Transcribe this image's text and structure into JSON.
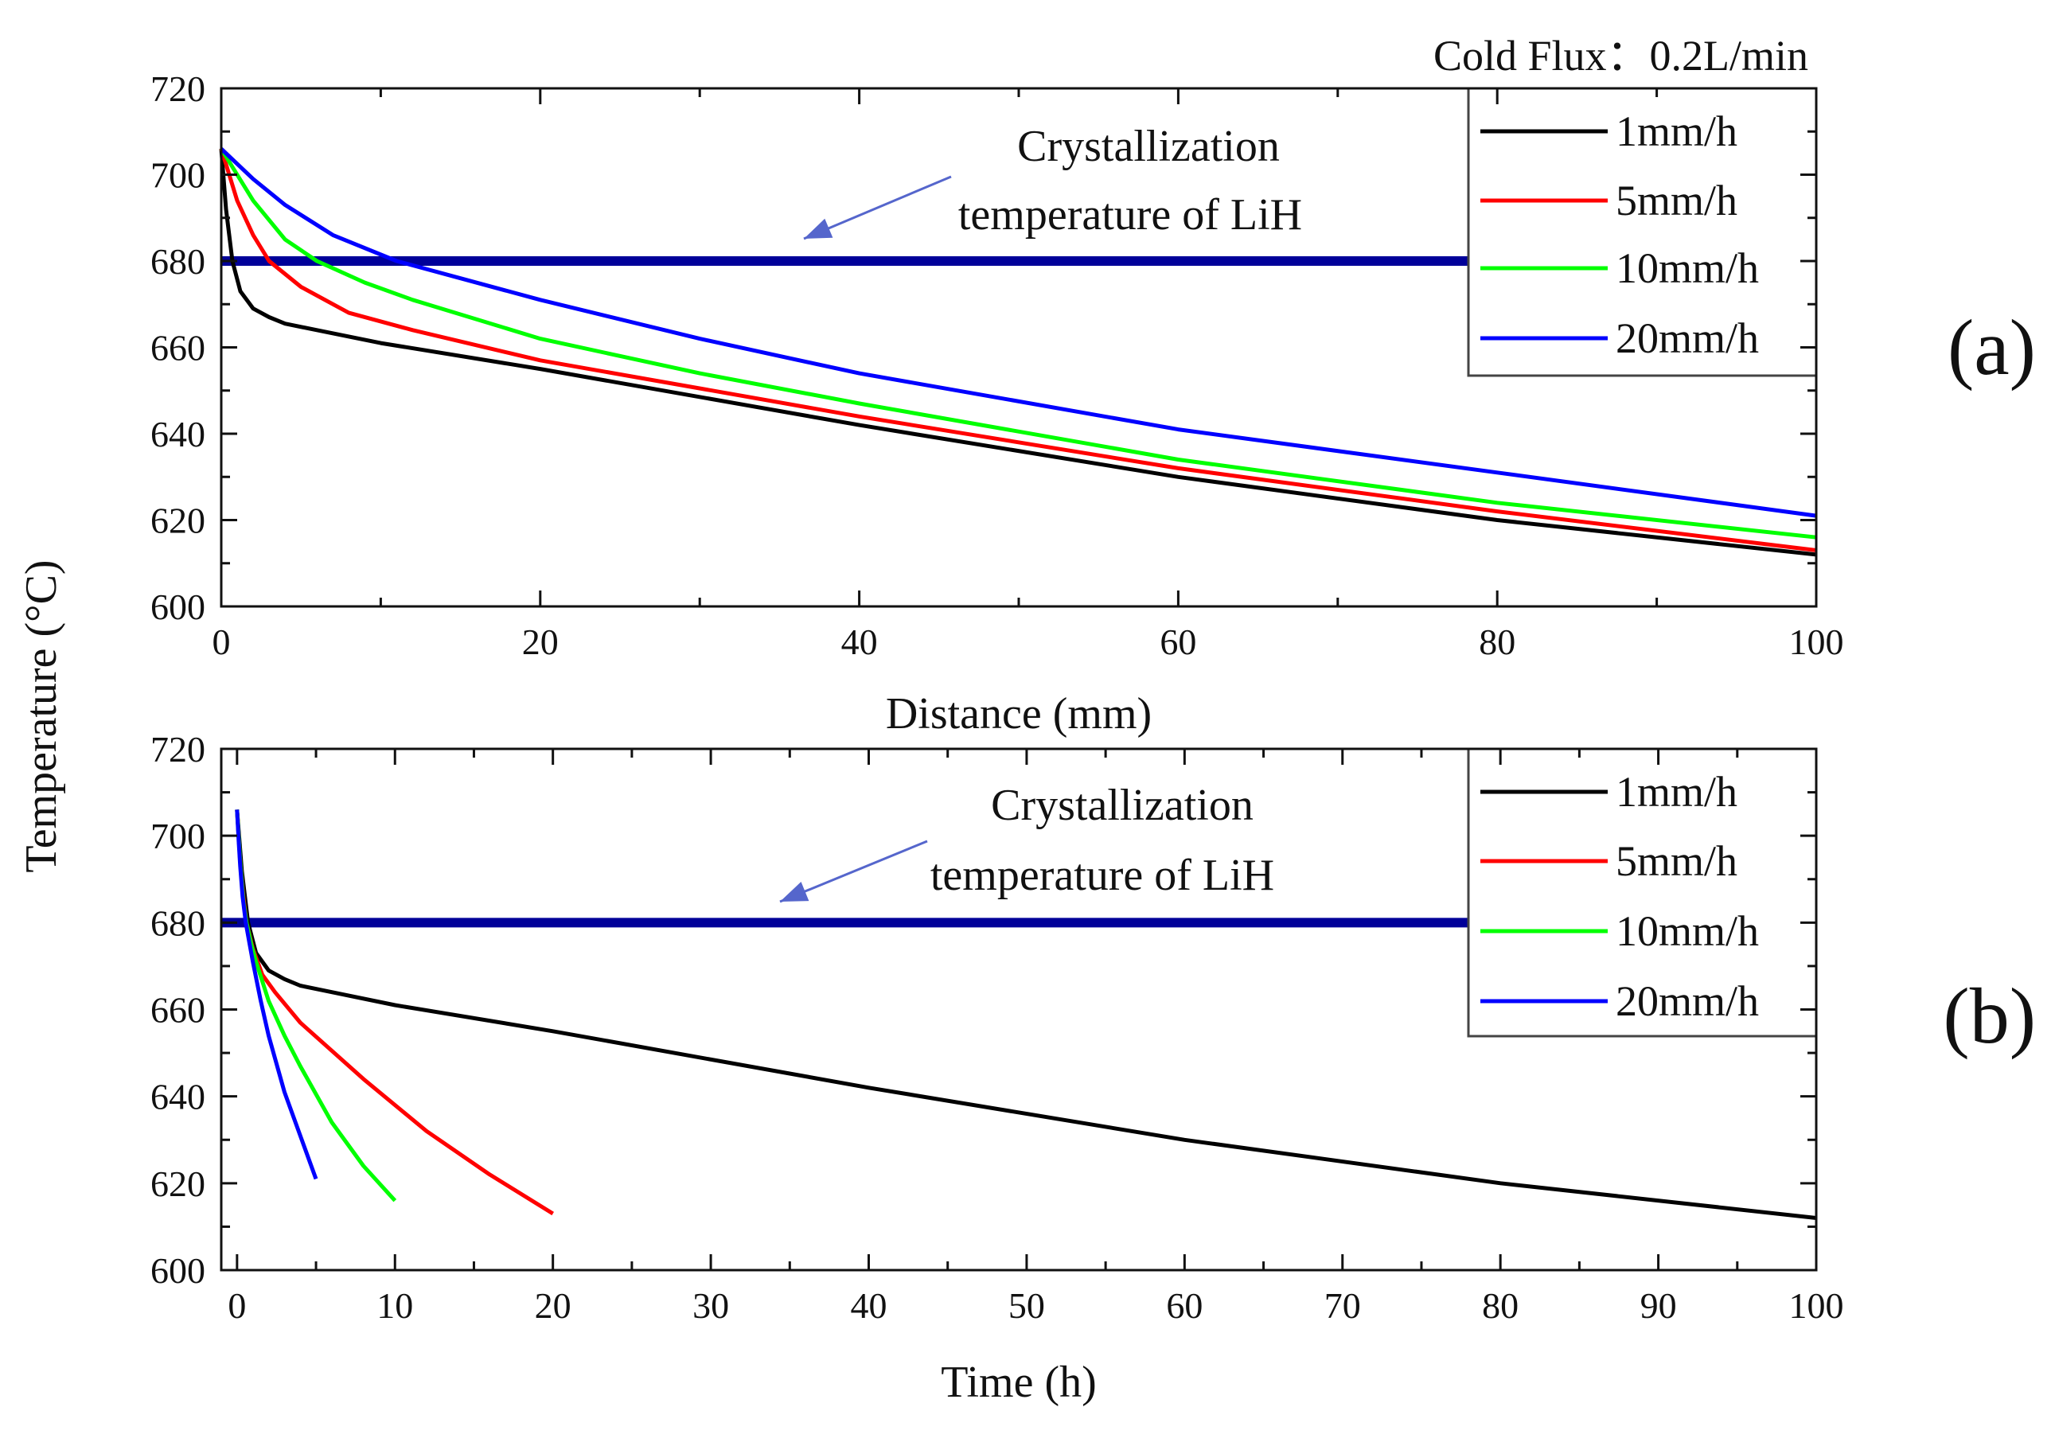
{
  "header": {
    "cold_flux": "Cold Flux：0.2L/min"
  },
  "y_axis_title": "Temperature (°C)",
  "colors": {
    "1mm/h": "#000000",
    "5mm/h": "#ff0000",
    "10mm/h": "#00ff00",
    "20mm/h": "#0000ff",
    "crystallization_line": "#000099",
    "annotation_arrow": "#5566cc"
  },
  "chart_data": [
    {
      "type": "line",
      "panel_label": "(a)",
      "xlabel": "Distance (mm)",
      "ylabel": "Temperature (°C)",
      "xlim": [
        0,
        100
      ],
      "ylim": [
        600,
        720
      ],
      "x_ticks": [
        0,
        20,
        40,
        60,
        80,
        100
      ],
      "y_ticks": [
        600,
        620,
        640,
        660,
        680,
        700,
        720
      ],
      "legend_position": "top-right",
      "annotation": {
        "line1": "Crystallization",
        "line2": "temperature of LiH"
      },
      "hline": {
        "y": 680
      },
      "series": [
        {
          "name": "1mm/h",
          "color": "#000000",
          "x": [
            0,
            0.3,
            0.7,
            1.2,
            2,
            3,
            4,
            6,
            10,
            20,
            40,
            60,
            80,
            100
          ],
          "y": [
            706,
            692,
            680,
            673,
            669,
            667,
            665.5,
            664,
            661,
            655,
            642,
            630,
            620,
            612
          ]
        },
        {
          "name": "5mm/h",
          "color": "#ff0000",
          "x": [
            0,
            0.5,
            1,
            2,
            3,
            5,
            8,
            12,
            20,
            40,
            60,
            80,
            100
          ],
          "y": [
            706,
            700,
            694,
            686,
            680,
            674,
            668,
            664,
            657,
            644,
            632,
            622,
            613
          ]
        },
        {
          "name": "10mm/h",
          "color": "#00ff00",
          "x": [
            0,
            1,
            2,
            4,
            6,
            9,
            12,
            20,
            30,
            40,
            60,
            80,
            100
          ],
          "y": [
            706,
            700,
            694,
            685,
            680,
            675,
            671,
            662,
            654,
            647,
            634,
            624,
            616
          ]
        },
        {
          "name": "20mm/h",
          "color": "#0000ff",
          "x": [
            0,
            2,
            4,
            7,
            11,
            15,
            20,
            30,
            40,
            60,
            80,
            100
          ],
          "y": [
            706,
            699,
            693,
            686,
            680,
            676,
            671,
            662,
            654,
            641,
            631,
            621
          ]
        }
      ]
    },
    {
      "type": "line",
      "panel_label": "(b)",
      "xlabel": "Time (h)",
      "ylabel": "Temperature (°C)",
      "xlim": [
        -1,
        100
      ],
      "ylim": [
        600,
        720
      ],
      "x_ticks": [
        0,
        10,
        20,
        30,
        40,
        50,
        60,
        70,
        80,
        90,
        100
      ],
      "y_ticks": [
        600,
        620,
        640,
        660,
        680,
        700,
        720
      ],
      "legend_position": "top-right",
      "annotation": {
        "line1": "Crystallization",
        "line2": "temperature of LiH"
      },
      "hline": {
        "y": 680
      },
      "series": [
        {
          "name": "1mm/h",
          "color": "#000000",
          "x": [
            0,
            0.3,
            0.7,
            1.2,
            2,
            3,
            4,
            6,
            10,
            20,
            40,
            60,
            80,
            100
          ],
          "y": [
            706,
            692,
            680,
            673,
            669,
            667,
            665.5,
            664,
            661,
            655,
            642,
            630,
            620,
            612
          ]
        },
        {
          "name": "5mm/h",
          "color": "#ff0000",
          "x": [
            0,
            0.1,
            0.2,
            0.4,
            0.6,
            1,
            1.6,
            2.4,
            4,
            8,
            12,
            16,
            20
          ],
          "y": [
            706,
            700,
            694,
            686,
            680,
            674,
            668,
            664,
            657,
            644,
            632,
            622,
            613
          ]
        },
        {
          "name": "10mm/h",
          "color": "#00ff00",
          "x": [
            0,
            0.1,
            0.2,
            0.4,
            0.6,
            0.9,
            1.2,
            2,
            3,
            4,
            6,
            8,
            10
          ],
          "y": [
            706,
            700,
            694,
            685,
            680,
            675,
            671,
            662,
            654,
            647,
            634,
            624,
            616
          ]
        },
        {
          "name": "20mm/h",
          "color": "#0000ff",
          "x": [
            0,
            0.1,
            0.2,
            0.35,
            0.55,
            0.75,
            1,
            1.5,
            2,
            3,
            4,
            5
          ],
          "y": [
            706,
            699,
            693,
            686,
            680,
            676,
            671,
            662,
            654,
            641,
            631,
            621
          ]
        }
      ]
    }
  ]
}
